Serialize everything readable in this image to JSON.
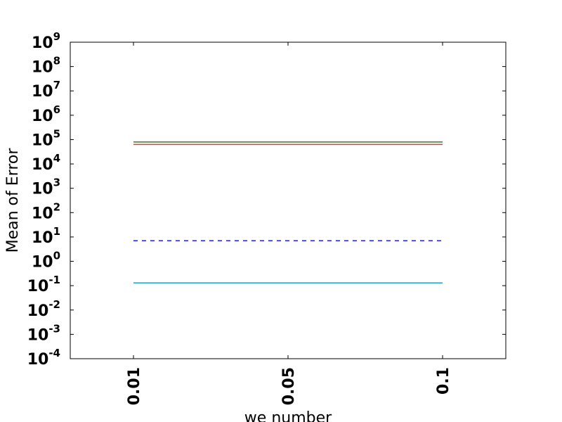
{
  "chart_data": {
    "type": "line",
    "xlabel": "we number",
    "ylabel": "Mean of Error",
    "yscale": "log",
    "ylim": [
      0.0001,
      1000000000
    ],
    "categories": [
      "0.01",
      "0.05",
      "0.1"
    ],
    "yticks": [
      {
        "base": "10",
        "exp": "-4",
        "value": 0.0001
      },
      {
        "base": "10",
        "exp": "-3",
        "value": 0.001
      },
      {
        "base": "10",
        "exp": "-2",
        "value": 0.01
      },
      {
        "base": "10",
        "exp": "-1",
        "value": 0.1
      },
      {
        "base": "10",
        "exp": "0",
        "value": 1
      },
      {
        "base": "10",
        "exp": "1",
        "value": 10
      },
      {
        "base": "10",
        "exp": "2",
        "value": 100
      },
      {
        "base": "10",
        "exp": "3",
        "value": 1000
      },
      {
        "base": "10",
        "exp": "4",
        "value": 10000
      },
      {
        "base": "10",
        "exp": "5",
        "value": 100000
      },
      {
        "base": "10",
        "exp": "6",
        "value": 1000000
      },
      {
        "base": "10",
        "exp": "7",
        "value": 10000000
      },
      {
        "base": "10",
        "exp": "8",
        "value": 100000000
      },
      {
        "base": "10",
        "exp": "9",
        "value": 1000000000
      }
    ],
    "legend": false,
    "grid": false,
    "series": [
      {
        "color": "#2e7d32",
        "style": "solid",
        "values": [
          80000,
          80000,
          80000
        ]
      },
      {
        "color": "#e53935",
        "style": "solid",
        "values": [
          63000,
          63000,
          63000
        ]
      },
      {
        "color": "#1f1fff",
        "style": "dashed",
        "values": [
          7.0,
          7.0,
          7.0
        ]
      },
      {
        "color": "#1fa3c8",
        "style": "solid",
        "values": [
          0.13,
          0.13,
          0.13
        ]
      }
    ]
  }
}
